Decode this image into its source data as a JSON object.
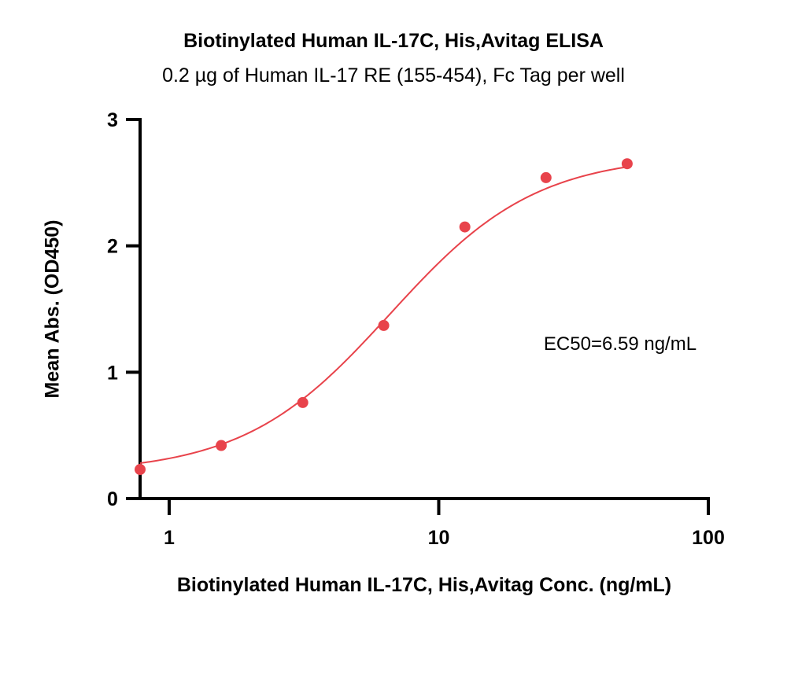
{
  "chart_data": {
    "type": "scatter",
    "title": "Biotinylated Human IL-17C, His,Avitag ELISA",
    "subtitle": "0.2 µg of Human IL-17 RE (155-454), Fc Tag per well",
    "xlabel": "Biotinylated Human IL-17C, His,Avitag Conc. (ng/mL)",
    "ylabel": "Mean Abs. (OD450)",
    "x_scale": "log",
    "xlim": [
      0.78,
      100
    ],
    "ylim": [
      0,
      3
    ],
    "x_ticks": [
      1,
      10,
      100
    ],
    "x_tick_labels": [
      "1",
      "10",
      "100"
    ],
    "y_ticks": [
      0,
      1,
      2,
      3
    ],
    "y_tick_labels": [
      "0",
      "1",
      "2",
      "3"
    ],
    "grid": false,
    "color": "#e8434b",
    "points": {
      "x": [
        0.78,
        1.56,
        3.13,
        6.25,
        12.5,
        25,
        50
      ],
      "y": [
        0.23,
        0.42,
        0.76,
        1.37,
        2.15,
        2.54,
        2.65
      ]
    },
    "fit": {
      "model": "4PL",
      "bottom": 0.2,
      "top": 2.72,
      "ec50": 6.59,
      "hill": 1.6
    },
    "annotation": "EC50=6.59 ng/mL"
  }
}
